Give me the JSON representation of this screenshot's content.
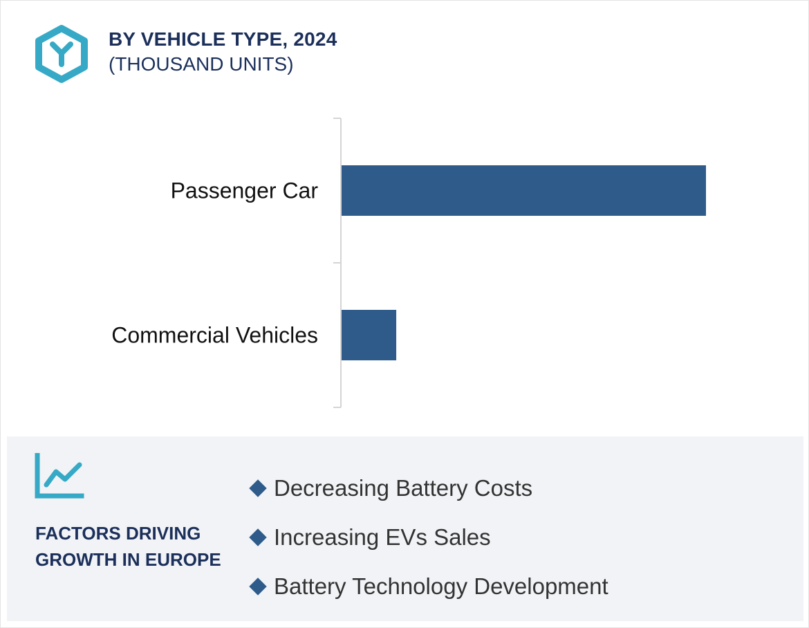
{
  "header": {
    "title": "BY VEHICLE TYPE, 2024",
    "subtitle": "(THOUSAND UNITS)",
    "icon": "hexagon-y-logo-icon"
  },
  "colors": {
    "bar": "#2e5b8a",
    "accent": "#36a9c6",
    "navy": "#1b2f5a",
    "panel": "#f1f3f6"
  },
  "chart_data": {
    "type": "bar",
    "orientation": "horizontal",
    "categories": [
      "Passenger Car",
      "Commercial Vehicles"
    ],
    "values": [
      100,
      15
    ],
    "xlim": [
      0,
      100
    ],
    "grid": false,
    "legend": "none"
  },
  "factors": {
    "icon": "trend-line-chart-icon",
    "title": "FACTORS DRIVING GROWTH IN EUROPE",
    "items": [
      "Decreasing Battery Costs",
      "Increasing EVs Sales",
      "Battery Technology Development"
    ]
  }
}
